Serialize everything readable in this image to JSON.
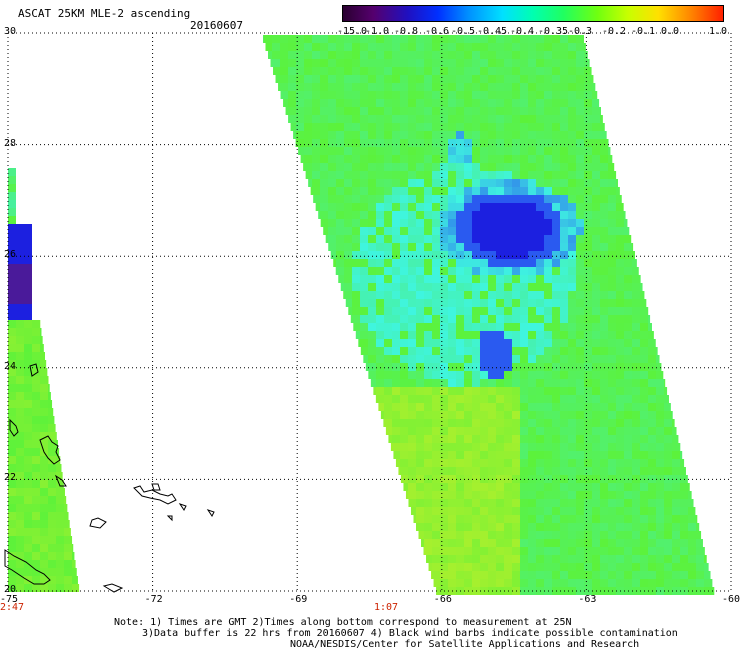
{
  "header": {
    "title": "ASCAT 25KM MLE-2 ascending",
    "date": "20160607"
  },
  "colorbar": {
    "labels": [
      "-15.0",
      "-1.0",
      "-0.8",
      "-0.6",
      "-0.5",
      "-0.45",
      "-0.4",
      "-0.35",
      "-0.3",
      "-0.2",
      "-0.1",
      "0.0",
      "1.0"
    ],
    "colors": [
      "#2a0030",
      "#55006e",
      "#2010c0",
      "#0030ff",
      "#0090ff",
      "#00e0ff",
      "#00ffb0",
      "#20ff60",
      "#70ff10",
      "#c8ff00",
      "#ffe000",
      "#ff8000",
      "#ff2000"
    ]
  },
  "axes": {
    "x_ticks": [
      "-75",
      "-72",
      "-69",
      "-66",
      "-63",
      "-60"
    ],
    "y_ticks": [
      "30",
      "28",
      "26",
      "24",
      "22",
      "20"
    ],
    "x_range": [
      -75,
      -60
    ],
    "y_range": [
      20,
      30
    ]
  },
  "times": {
    "left": "2:47",
    "center": "1:07"
  },
  "notes": {
    "line1": "Note: 1) Times are GMT 2)Times along bottom correspond to measurement at 25N",
    "line2": "3)Data buffer is 22 hrs from 20160607 4) Black wind barbs indicate possible contamination",
    "line3": "NOAA/NESDIS/Center for Satellite Applications and Research"
  },
  "legend_colors": {
    "bg_green": "#5cf23a",
    "light_green": "#a6f02e",
    "cyan": "#3ff5e0",
    "blue": "#2a5af0",
    "deep_blue": "#1c20e0",
    "purple": "#4a1a9a",
    "swath_cyan_mix": "#48f0a0"
  }
}
